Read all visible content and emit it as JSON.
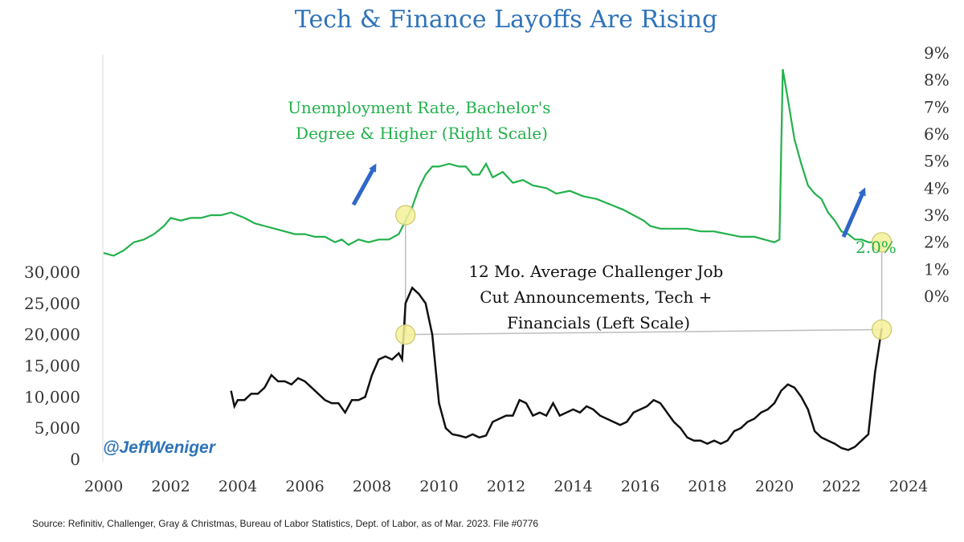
{
  "chart_data": {
    "type": "line",
    "title": "Tech & Finance Layoffs Are Rising",
    "source": "Source: Refinitiv, Challenger, Gray & Christmas, Bureau of Labor Statistics, Dept. of Labor, as of Mar. 2023. File #0776",
    "watermark": "@JeffWeniger",
    "x_ticks": [
      "2000",
      "2002",
      "2004",
      "2006",
      "2008",
      "2010",
      "2012",
      "2014",
      "2016",
      "2018",
      "2020",
      "2022",
      "2024"
    ],
    "xlim": [
      2000,
      2024
    ],
    "left_axis": {
      "ticks": [
        "0",
        "5,000",
        "10,000",
        "15,000",
        "20,000",
        "25,000",
        "30,000"
      ],
      "ylim": [
        0,
        30000
      ]
    },
    "right_axis": {
      "ticks": [
        "0%",
        "1%",
        "2%",
        "3%",
        "4%",
        "5%",
        "6%",
        "7%",
        "8%",
        "9%"
      ],
      "ylim": [
        0,
        9
      ]
    },
    "series": [
      {
        "name": "Unemployment Rate, Bachelor's Degree & Higher (Right Scale)",
        "label_lines": [
          "Unemployment Rate, Bachelor's",
          "Degree & Higher (Right Scale)"
        ],
        "axis": "right",
        "color": "#22b14c",
        "end_label": "2.0%",
        "points": [
          [
            2000.0,
            1.6
          ],
          [
            2000.3,
            1.5
          ],
          [
            2000.6,
            1.7
          ],
          [
            2000.9,
            2.0
          ],
          [
            2001.2,
            2.1
          ],
          [
            2001.5,
            2.3
          ],
          [
            2001.8,
            2.6
          ],
          [
            2002.0,
            2.9
          ],
          [
            2002.3,
            2.8
          ],
          [
            2002.6,
            2.9
          ],
          [
            2002.9,
            2.9
          ],
          [
            2003.2,
            3.0
          ],
          [
            2003.5,
            3.0
          ],
          [
            2003.8,
            3.1
          ],
          [
            2004.0,
            3.0
          ],
          [
            2004.2,
            2.9
          ],
          [
            2004.5,
            2.7
          ],
          [
            2004.8,
            2.6
          ],
          [
            2005.1,
            2.5
          ],
          [
            2005.4,
            2.4
          ],
          [
            2005.7,
            2.3
          ],
          [
            2006.0,
            2.3
          ],
          [
            2006.3,
            2.2
          ],
          [
            2006.6,
            2.2
          ],
          [
            2006.9,
            2.0
          ],
          [
            2007.1,
            2.1
          ],
          [
            2007.3,
            1.9
          ],
          [
            2007.6,
            2.1
          ],
          [
            2007.9,
            2.0
          ],
          [
            2008.2,
            2.1
          ],
          [
            2008.5,
            2.1
          ],
          [
            2008.8,
            2.3
          ],
          [
            2009.0,
            2.8
          ],
          [
            2009.2,
            3.3
          ],
          [
            2009.4,
            4.0
          ],
          [
            2009.6,
            4.5
          ],
          [
            2009.8,
            4.8
          ],
          [
            2010.0,
            4.8
          ],
          [
            2010.3,
            4.9
          ],
          [
            2010.6,
            4.8
          ],
          [
            2010.8,
            4.8
          ],
          [
            2011.0,
            4.5
          ],
          [
            2011.2,
            4.5
          ],
          [
            2011.4,
            4.9
          ],
          [
            2011.6,
            4.4
          ],
          [
            2011.9,
            4.6
          ],
          [
            2012.2,
            4.2
          ],
          [
            2012.5,
            4.3
          ],
          [
            2012.8,
            4.1
          ],
          [
            2013.2,
            4.0
          ],
          [
            2013.5,
            3.8
          ],
          [
            2013.9,
            3.9
          ],
          [
            2014.3,
            3.7
          ],
          [
            2014.7,
            3.6
          ],
          [
            2015.1,
            3.4
          ],
          [
            2015.5,
            3.2
          ],
          [
            2015.8,
            3.0
          ],
          [
            2016.1,
            2.8
          ],
          [
            2016.3,
            2.6
          ],
          [
            2016.6,
            2.5
          ],
          [
            2017.0,
            2.5
          ],
          [
            2017.4,
            2.5
          ],
          [
            2017.8,
            2.4
          ],
          [
            2018.2,
            2.4
          ],
          [
            2018.6,
            2.3
          ],
          [
            2019.0,
            2.2
          ],
          [
            2019.4,
            2.2
          ],
          [
            2019.7,
            2.1
          ],
          [
            2020.0,
            2.0
          ],
          [
            2020.15,
            2.1
          ],
          [
            2020.25,
            8.4
          ],
          [
            2020.4,
            7.3
          ],
          [
            2020.6,
            5.8
          ],
          [
            2020.8,
            4.9
          ],
          [
            2021.0,
            4.1
          ],
          [
            2021.2,
            3.8
          ],
          [
            2021.4,
            3.6
          ],
          [
            2021.6,
            3.1
          ],
          [
            2021.8,
            2.8
          ],
          [
            2022.0,
            2.4
          ],
          [
            2022.2,
            2.3
          ],
          [
            2022.4,
            2.1
          ],
          [
            2022.6,
            2.1
          ],
          [
            2022.8,
            2.0
          ],
          [
            2023.0,
            2.0
          ],
          [
            2023.2,
            2.0
          ]
        ]
      },
      {
        "name": "12 Mo. Average Challenger Job Cut Announcements, Tech + Financials (Left Scale)",
        "label_lines": [
          "12 Mo. Average Challenger Job",
          "Cut Announcements, Tech +",
          "Financials (Left Scale)"
        ],
        "axis": "left",
        "color": "#111111",
        "points": [
          [
            2003.8,
            11000
          ],
          [
            2003.9,
            8500
          ],
          [
            2004.0,
            9500
          ],
          [
            2004.2,
            9500
          ],
          [
            2004.4,
            10500
          ],
          [
            2004.6,
            10500
          ],
          [
            2004.8,
            11500
          ],
          [
            2005.0,
            13500
          ],
          [
            2005.2,
            12500
          ],
          [
            2005.4,
            12500
          ],
          [
            2005.6,
            12000
          ],
          [
            2005.8,
            13000
          ],
          [
            2006.0,
            12500
          ],
          [
            2006.2,
            11500
          ],
          [
            2006.4,
            10500
          ],
          [
            2006.6,
            9500
          ],
          [
            2006.8,
            9000
          ],
          [
            2007.0,
            9000
          ],
          [
            2007.2,
            7500
          ],
          [
            2007.4,
            9500
          ],
          [
            2007.6,
            9500
          ],
          [
            2007.8,
            10000
          ],
          [
            2008.0,
            13500
          ],
          [
            2008.2,
            16000
          ],
          [
            2008.4,
            16500
          ],
          [
            2008.6,
            16000
          ],
          [
            2008.8,
            17000
          ],
          [
            2008.9,
            16000
          ],
          [
            2009.0,
            25000
          ],
          [
            2009.2,
            27500
          ],
          [
            2009.4,
            26500
          ],
          [
            2009.6,
            25000
          ],
          [
            2009.8,
            20000
          ],
          [
            2010.0,
            9000
          ],
          [
            2010.2,
            5000
          ],
          [
            2010.4,
            4000
          ],
          [
            2010.6,
            3800
          ],
          [
            2010.8,
            3500
          ],
          [
            2011.0,
            4000
          ],
          [
            2011.2,
            3500
          ],
          [
            2011.4,
            3800
          ],
          [
            2011.6,
            6000
          ],
          [
            2011.8,
            6500
          ],
          [
            2012.0,
            7000
          ],
          [
            2012.2,
            7000
          ],
          [
            2012.4,
            9500
          ],
          [
            2012.6,
            9000
          ],
          [
            2012.8,
            7000
          ],
          [
            2013.0,
            7500
          ],
          [
            2013.2,
            7000
          ],
          [
            2013.4,
            9000
          ],
          [
            2013.6,
            7000
          ],
          [
            2013.8,
            7500
          ],
          [
            2014.0,
            8000
          ],
          [
            2014.2,
            7500
          ],
          [
            2014.4,
            8500
          ],
          [
            2014.6,
            8000
          ],
          [
            2014.8,
            7000
          ],
          [
            2015.0,
            6500
          ],
          [
            2015.2,
            6000
          ],
          [
            2015.4,
            5500
          ],
          [
            2015.6,
            6000
          ],
          [
            2015.8,
            7500
          ],
          [
            2016.0,
            8000
          ],
          [
            2016.2,
            8500
          ],
          [
            2016.4,
            9500
          ],
          [
            2016.6,
            9000
          ],
          [
            2016.8,
            7500
          ],
          [
            2017.0,
            6000
          ],
          [
            2017.2,
            5000
          ],
          [
            2017.4,
            3500
          ],
          [
            2017.6,
            3000
          ],
          [
            2017.8,
            3000
          ],
          [
            2018.0,
            2500
          ],
          [
            2018.2,
            3000
          ],
          [
            2018.4,
            2500
          ],
          [
            2018.6,
            3000
          ],
          [
            2018.8,
            4500
          ],
          [
            2019.0,
            5000
          ],
          [
            2019.2,
            6000
          ],
          [
            2019.4,
            6500
          ],
          [
            2019.6,
            7500
          ],
          [
            2019.8,
            8000
          ],
          [
            2020.0,
            9000
          ],
          [
            2020.2,
            11000
          ],
          [
            2020.4,
            12000
          ],
          [
            2020.6,
            11500
          ],
          [
            2020.8,
            10000
          ],
          [
            2021.0,
            8000
          ],
          [
            2021.2,
            4500
          ],
          [
            2021.4,
            3500
          ],
          [
            2021.6,
            3000
          ],
          [
            2021.8,
            2500
          ],
          [
            2022.0,
            1800
          ],
          [
            2022.2,
            1500
          ],
          [
            2022.4,
            2000
          ],
          [
            2022.6,
            3000
          ],
          [
            2022.8,
            4000
          ],
          [
            2023.0,
            14000
          ],
          [
            2023.2,
            21000
          ]
        ]
      }
    ],
    "markers": [
      {
        "series": 0,
        "x": 2009.0,
        "y": 3.0
      },
      {
        "series": 1,
        "x": 2009.0,
        "y": 20000
      },
      {
        "series": 0,
        "x": 2023.2,
        "y": 2.0
      },
      {
        "series": 1,
        "x": 2023.2,
        "y": 20800
      }
    ]
  }
}
